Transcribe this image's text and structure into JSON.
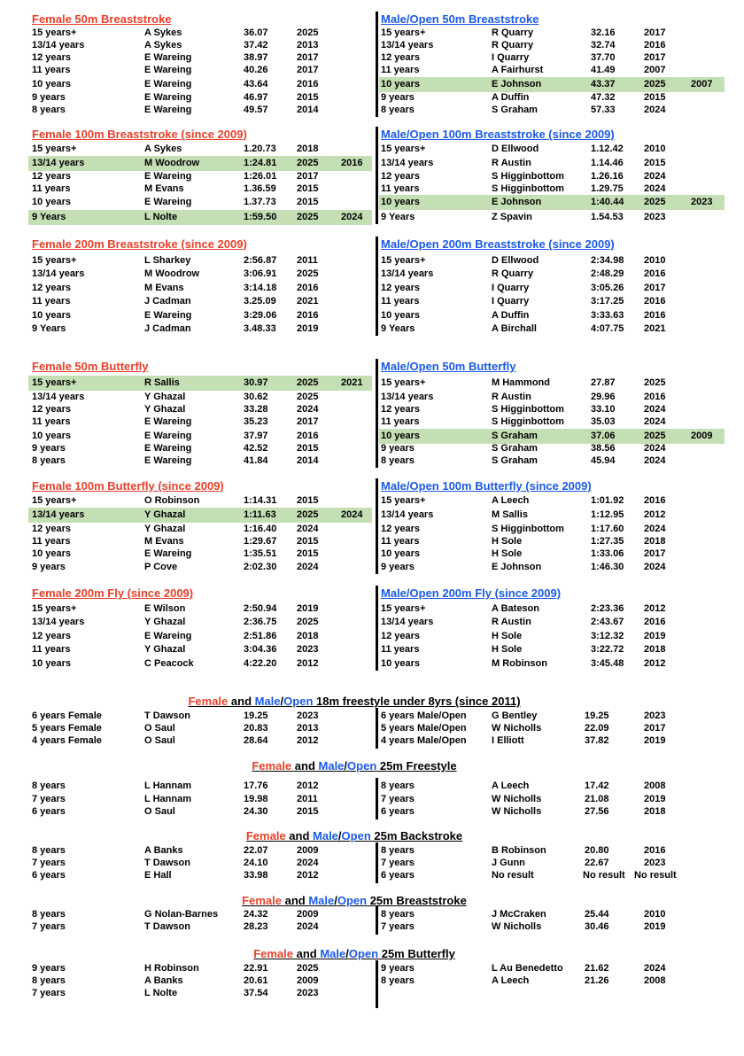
{
  "colors": {
    "female": "#e8402a",
    "male": "#1a5ae8",
    "highlight": "#c5dfb5",
    "text": "#000000"
  },
  "pairs": [
    {
      "female": {
        "title": " Female 50m Breaststroke",
        "rows": [
          {
            "age": "15 years+",
            "name": "A Sykes",
            "time": "36.07",
            "year": "2025"
          },
          {
            "age": "13/14 years",
            "name": "A Sykes",
            "time": "37.42",
            "year": "2013"
          },
          {
            "age": "12 years",
            "name": "E Wareing",
            "time": "38.97",
            "year": "2017"
          },
          {
            "age": "11 years",
            "name": "E Wareing",
            "time": "40.26",
            "year": "2017"
          },
          {
            "age": "10 years",
            "name": "E Wareing",
            "time": "43.64",
            "year": "2016"
          },
          {
            "age": "9 years",
            "name": "E Wareing",
            "time": "46.97",
            "year": "2015"
          },
          {
            "age": "8 years",
            "name": "E Wareing",
            "time": "49.57",
            "year": "2014"
          }
        ]
      },
      "male": {
        "title": " Male/Open 50m Breaststroke",
        "rows": [
          {
            "age": "15 years+",
            "name": "R Quarry",
            "time": "32.16",
            "year": "2017"
          },
          {
            "age": "13/14 years",
            "name": "R Quarry",
            "time": "32.74",
            "year": "2016"
          },
          {
            "age": "12 years",
            "name": "I Quarry",
            "time": "37.70",
            "year": "2017"
          },
          {
            "age": "11 years",
            "name": "A Fairhurst",
            "time": "41.49",
            "year": "2007"
          },
          {
            "age": "10 years",
            "name": "E Johnson",
            "time": "43.37",
            "year": "2025",
            "prev": "2007"
          },
          {
            "age": "9 years",
            "name": "A Duffin",
            "time": "47.32",
            "year": "2015"
          },
          {
            "age": "8 years",
            "name": "S Graham",
            "time": "57.33",
            "year": "2024"
          }
        ]
      }
    },
    {
      "female": {
        "title": " Female 100m Breaststroke (since 2009)",
        "rows": [
          {
            "age": "15 years+",
            "name": "A Sykes",
            "time": "1.20.73",
            "year": "2018"
          },
          {
            "age": "13/14 years",
            "name": "M Woodrow",
            "time": "1:24.81",
            "year": "2025",
            "prev": "2016"
          },
          {
            "age": "12 years",
            "name": "E Wareing",
            "time": "1:26.01",
            "year": "2017"
          },
          {
            "age": "11 years",
            "name": "M Evans",
            "time": "1.36.59",
            "year": "2015"
          },
          {
            "age": "10 years",
            "name": "E Wareing",
            "time": "1.37.73",
            "year": "2015"
          },
          {
            "age": "9 Years",
            "name": "L Nolte",
            "time": "1:59.50",
            "year": "2025",
            "prev": "2024"
          }
        ]
      },
      "male": {
        "title": " Male/Open 100m Breaststroke (since 2009)",
        "rows": [
          {
            "age": "15 years+",
            "name": "D Ellwood",
            "time": "1.12.42",
            "year": "2010"
          },
          {
            "age": "13/14 years",
            "name": "R Austin",
            "time": "1.14.46",
            "year": "2015"
          },
          {
            "age": "12 years",
            "name": "S Higginbottom",
            "time": "1.26.16",
            "year": "2024"
          },
          {
            "age": "11 years",
            "name": "S Higginbottom",
            "time": "1.29.75",
            "year": "2024"
          },
          {
            "age": "10 years",
            "name": "E Johnson",
            "time": "1:40.44",
            "year": "2025",
            "prev": "2023"
          },
          {
            "age": "9 Years",
            "name": "Z Spavin",
            "time": "1.54.53",
            "year": "2023"
          }
        ]
      }
    },
    {
      "female": {
        "title": "Female 200m Breaststroke (since 2009)",
        "rows": [
          {
            "age": "15 years+",
            "name": "L Sharkey",
            "time": "2:56.87",
            "year": "2011"
          },
          {
            "age": "13/14 years",
            "name": "M Woodrow",
            "time": "3:06.91",
            "year": "2025"
          },
          {
            "age": "12 years",
            "name": "M Evans",
            "time": "3:14.18",
            "year": "2016"
          },
          {
            "age": "11 years",
            "name": "J Cadman",
            "time": "3.25.09",
            "year": "2021"
          },
          {
            "age": "10 years",
            "name": "E Wareing",
            "time": "3:29.06",
            "year": "2016"
          },
          {
            "age": "9 Years",
            "name": "J Cadman",
            "time": "3.48.33",
            "year": "2019"
          }
        ]
      },
      "male": {
        "title": "Male/Open 200m Breaststroke (since 2009)",
        "rows": [
          {
            "age": "15 years+",
            "name": "D Ellwood",
            "time": "2:34.98",
            "year": "2010"
          },
          {
            "age": "13/14 years",
            "name": "R Quarry",
            "time": "2:48.29",
            "year": "2016"
          },
          {
            "age": "12 years",
            "name": "I Quarry",
            "time": "3:05.26",
            "year": "2017"
          },
          {
            "age": "11 years",
            "name": "I Quarry",
            "time": "3:17.25",
            "year": "2016"
          },
          {
            "age": "10 years",
            "name": "A Duffin",
            "time": "3:33.63",
            "year": "2016"
          },
          {
            "age": "9 Years",
            "name": "A Birchall",
            "time": "4:07.75",
            "year": "2021"
          }
        ]
      }
    },
    {
      "female": {
        "title": " Female 50m Butterfly",
        "rows": [
          {
            "age": "15 years+",
            "name": "R Sallis",
            "time": "30.97",
            "year": "2025",
            "prev": "2021"
          },
          {
            "age": "13/14 years",
            "name": "Y Ghazal",
            "time": "30.62",
            "year": "2025"
          },
          {
            "age": "12 years",
            "name": "Y Ghazal",
            "time": "33.28",
            "year": "2024"
          },
          {
            "age": "11 years",
            "name": "E Wareing",
            "time": "35.23",
            "year": "2017"
          },
          {
            "age": "10 years",
            "name": "E Wareing",
            "time": "37.97",
            "year": "2016"
          },
          {
            "age": "9 years",
            "name": "E Wareing",
            "time": "42.52",
            "year": "2015"
          },
          {
            "age": "8 years",
            "name": "E Wareing",
            "time": "41.84",
            "year": "2014"
          }
        ]
      },
      "male": {
        "title": " Male/Open 50m Butterfly",
        "rows": [
          {
            "age": "15 years+",
            "name": "M Hammond",
            "time": "27.87",
            "year": "2025"
          },
          {
            "age": "13/14 years",
            "name": "R Austin",
            "time": "29.96",
            "year": "2016"
          },
          {
            "age": "12 years",
            "name": "S Higginbottom",
            "time": "33.10",
            "year": "2024"
          },
          {
            "age": "11 years",
            "name": "S Higginbottom",
            "time": "35.03",
            "year": "2024"
          },
          {
            "age": "10 years",
            "name": "S Graham",
            "time": "37.06",
            "year": "2025",
            "prev": "2009"
          },
          {
            "age": "9 years",
            "name": "S Graham",
            "time": "38.56",
            "year": "2024"
          },
          {
            "age": "8 years",
            "name": "S Graham",
            "time": "45.94",
            "year": "2024"
          }
        ]
      }
    },
    {
      "female": {
        "title": "Female 100m Butterfly (since 2009)",
        "rows": [
          {
            "age": "15 years+",
            "name": "O Robinson",
            "time": "1:14.31",
            "year": "2015"
          },
          {
            "age": "13/14 years",
            "name": "Y Ghazal",
            "time": "1:11.63",
            "year": "2025",
            "prev": "2024"
          },
          {
            "age": "12 years",
            "name": "Y Ghazal",
            "time": "1:16.40",
            "year": "2024"
          },
          {
            "age": "11 years",
            "name": "M Evans",
            "time": "1:29.67",
            "year": "2015"
          },
          {
            "age": "10 years",
            "name": "E Wareing",
            "time": "1:35.51",
            "year": "2015"
          },
          {
            "age": "9 years",
            "name": "P Cove",
            "time": "2:02.30",
            "year": "2024"
          }
        ]
      },
      "male": {
        "title": " Male/Open 100m Butterfly (since 2009)",
        "rows": [
          {
            "age": "15 years+",
            "name": "A Leech",
            "time": "1:01.92",
            "year": "2016"
          },
          {
            "age": "13/14 years",
            "name": "M Sallis",
            "time": "1:12.95",
            "year": "2012"
          },
          {
            "age": "12 years",
            "name": "S Higginbottom",
            "time": "1:17.60",
            "year": "2024"
          },
          {
            "age": "11 years",
            "name": "H Sole",
            "time": "1:27.35",
            "year": "2018"
          },
          {
            "age": "10 years",
            "name": "H Sole",
            "time": "1:33.06",
            "year": "2017"
          },
          {
            "age": "9 years",
            "name": "E Johnson",
            "time": "1:46.30",
            "year": "2024"
          }
        ]
      }
    },
    {
      "female": {
        "title": "Female 200m Fly (since 2009)",
        "rows": [
          {
            "age": "15 years+",
            "name": "E Wilson",
            "time": "2:50.94",
            "year": "2019"
          },
          {
            "age": "13/14 years",
            "name": "Y Ghazal",
            "time": "2:36.75",
            "year": "2025"
          },
          {
            "age": "12 years",
            "name": "E Wareing",
            "time": "2:51.86",
            "year": "2018"
          },
          {
            "age": "11 years",
            "name": "Y Ghazal",
            "time": "3:04.36",
            "year": "2023"
          },
          {
            "age": "10 years",
            "name": "C Peacock",
            "time": "4:22.20",
            "year": "2012"
          }
        ]
      },
      "male": {
        "title": "Male/Open 200m Fly (since 2009)",
        "rows": [
          {
            "age": "15 years+",
            "name": "A Bateson",
            "time": "2:23.36",
            "year": "2012"
          },
          {
            "age": "13/14 years",
            "name": "R Austin",
            "time": "2:43.67",
            "year": "2016"
          },
          {
            "age": "12 years",
            "name": "H Sole",
            "time": "3:12.32",
            "year": "2019"
          },
          {
            "age": "11 years",
            "name": "H Sole",
            "time": "3:22.72",
            "year": "2018"
          },
          {
            "age": "10 years",
            "name": "M Robinson",
            "time": "3:45.48",
            "year": "2012"
          }
        ]
      }
    }
  ],
  "combined": [
    {
      "title": {
        "female": "Female",
        "and": " and ",
        "male": "Male",
        "slash": "/",
        "open": "Open",
        "rest": " 18m freestyle under 8yrs (since 2011)"
      },
      "female_rows": [
        {
          "age": "6 years Female",
          "name": "T Dawson",
          "time": "19.25",
          "year": "2023"
        },
        {
          "age": "5 years Female",
          "name": "O Saul",
          "time": "20.83",
          "year": "2013"
        },
        {
          "age": "4 years Female",
          "name": "O Saul",
          "time": "28.64",
          "year": "2012"
        }
      ],
      "male_rows": [
        {
          "age": "6 years Male/Open",
          "name": "G Bentley",
          "time": "19.25",
          "year": "2023"
        },
        {
          "age": "5 years Male/Open",
          "name": "W Nicholls",
          "time": "22.09",
          "year": "2017"
        },
        {
          "age": "4 years Male/Open",
          "name": "I Elliott",
          "time": "37.82",
          "year": "2019"
        }
      ]
    },
    {
      "title": {
        "female": "Female",
        "and": " and ",
        "male": "Male",
        "slash": "/",
        "open": "Open",
        "rest": " 25m Freestyle"
      },
      "female_rows": [
        {
          "age": "8 years",
          "name": "L Hannam",
          "time": "17.76",
          "year": "2012"
        },
        {
          "age": "7 years",
          "name": "L Hannam",
          "time": "19.98",
          "year": "2011"
        },
        {
          "age": "6 years",
          "name": "O Saul",
          "time": "24.30",
          "year": "2015"
        }
      ],
      "male_rows": [
        {
          "age": "8 years",
          "name": "A Leech",
          "time": "17.42",
          "year": "2008"
        },
        {
          "age": "7 years",
          "name": "W Nicholls",
          "time": "21.08",
          "year": "2019"
        },
        {
          "age": "6 years",
          "name": "W Nicholls",
          "time": "27.56",
          "year": "2018"
        }
      ]
    },
    {
      "title": {
        "female": "Female",
        "and": " and ",
        "male": "Male",
        "slash": "/",
        "open": "Open",
        "rest": " 25m Backstroke"
      },
      "female_rows": [
        {
          "age": "8 years",
          "name": "A Banks",
          "time": "22.07",
          "year": "2009"
        },
        {
          "age": "7 years",
          "name": "T Dawson",
          "time": "24.10",
          "year": "2024"
        },
        {
          "age": "6 years",
          "name": "E Hall",
          "time": "33.98",
          "year": "2012"
        }
      ],
      "male_rows": [
        {
          "age": "8 years",
          "name": "B Robinson",
          "time": "20.80",
          "year": "2016"
        },
        {
          "age": "7 years",
          "name": "J Gunn",
          "time": "22.67",
          "year": "2023"
        },
        {
          "age": "6 years",
          "name": "No result",
          "time": "No result",
          "year": "No result"
        }
      ]
    },
    {
      "title": {
        "female": "Female",
        "and": " and ",
        "male": "Male",
        "slash": "/",
        "open": "Open",
        "rest": " 25m Breaststroke"
      },
      "female_rows": [
        {
          "age": "8 years",
          "name": "G Nolan-Barnes",
          "time": "24.32",
          "year": "2009"
        },
        {
          "age": "7 years",
          "name": "T Dawson",
          "time": "28.23",
          "year": "2024"
        }
      ],
      "male_rows": [
        {
          "age": "8 years",
          "name": "J McCraken",
          "time": "25.44",
          "year": "2010"
        },
        {
          "age": "7 years",
          "name": "W Nicholls",
          "time": "30.46",
          "year": "2019"
        }
      ]
    },
    {
      "title": {
        "female": "Female",
        "and": " and ",
        "male": "Male",
        "slash": "/",
        "open": "Open",
        "rest": " 25m Butterfly"
      },
      "female_rows": [
        {
          "age": "9 years",
          "name": "H Robinson",
          "time": "22.91",
          "year": "2025"
        },
        {
          "age": "8 years",
          "name": "A Banks",
          "time": "20.61",
          "year": "2009"
        },
        {
          "age": "7 years",
          "name": "L Nolte",
          "time": "37.54",
          "year": "2023"
        }
      ],
      "male_rows": [
        {
          "age": "9 years",
          "name": "L Au Benedetto",
          "time": "21.62",
          "year": "2024"
        },
        {
          "age": "8 years",
          "name": "A Leech",
          "time": "21.26",
          "year": "2008"
        }
      ]
    }
  ]
}
